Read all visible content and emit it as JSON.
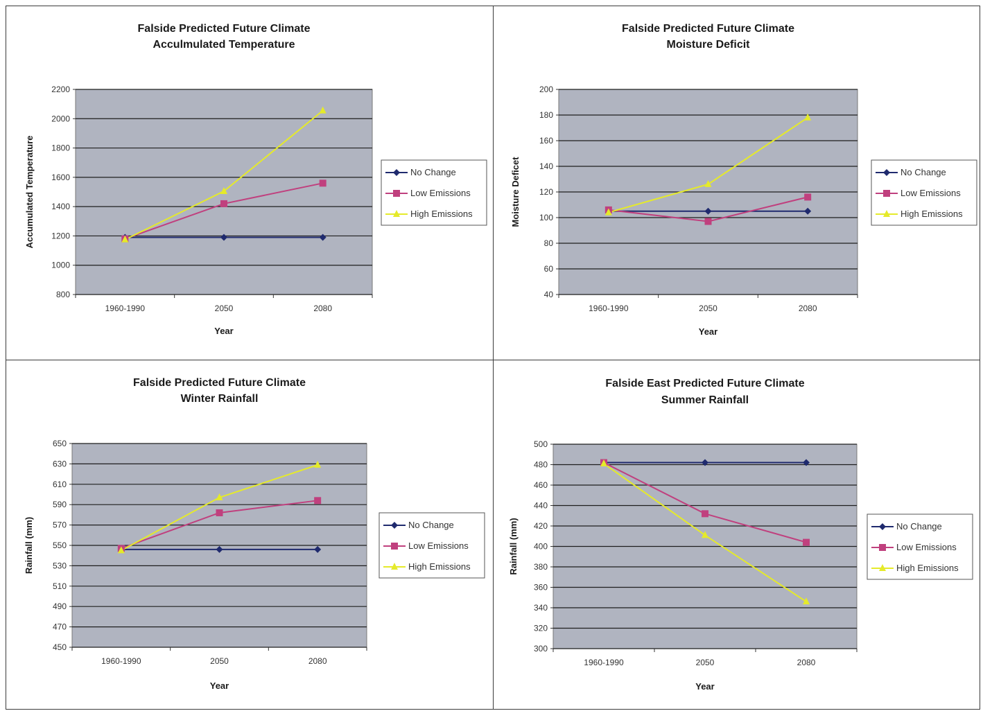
{
  "chart_data": [
    {
      "type": "line",
      "title": "Falside Predicted Future Climate",
      "subtitle": "Acculmulated Temperature",
      "xlabel": "Year",
      "ylabel": "Accumulated Temperature",
      "categories": [
        "1960-1990",
        "2050",
        "2080"
      ],
      "ylim": [
        800,
        2200
      ],
      "yticks": [
        "800",
        "1000",
        "1200",
        "1400",
        "1600",
        "1800",
        "2000",
        "2200"
      ],
      "grid": true,
      "legend": "right",
      "series": [
        {
          "name": "No Change",
          "color": "#1f2a6e",
          "marker": "diamond",
          "values": [
            1190,
            1190,
            1190
          ]
        },
        {
          "name": "Low Emissions",
          "color": "#c0407e",
          "marker": "square",
          "values": [
            1180,
            1420,
            1560
          ]
        },
        {
          "name": "High Emissions",
          "color": "#e5ea2a",
          "marker": "triangle",
          "values": [
            1175,
            1505,
            2055
          ]
        }
      ]
    },
    {
      "type": "line",
      "title": "Falside Predicted Future Climate",
      "subtitle": "Moisture Deficit",
      "xlabel": "Year",
      "ylabel": "Moisture Deficet",
      "categories": [
        "1960-1990",
        "2050",
        "2080"
      ],
      "ylim": [
        40,
        200
      ],
      "yticks": [
        "40",
        "60",
        "80",
        "100",
        "120",
        "140",
        "160",
        "180",
        "200"
      ],
      "grid": true,
      "legend": "right",
      "series": [
        {
          "name": "No Change",
          "color": "#1f2a6e",
          "marker": "diamond",
          "values": [
            105,
            105,
            105
          ]
        },
        {
          "name": "Low Emissions",
          "color": "#c0407e",
          "marker": "square",
          "values": [
            106,
            97,
            116
          ]
        },
        {
          "name": "High Emissions",
          "color": "#e5ea2a",
          "marker": "triangle",
          "values": [
            104,
            126,
            178
          ]
        }
      ]
    },
    {
      "type": "line",
      "title": "Falside Predicted Future Climate",
      "subtitle": "Winter Rainfall",
      "xlabel": "Year",
      "ylabel": "Rainfall (mm)",
      "categories": [
        "1960-1990",
        "2050",
        "2080"
      ],
      "ylim": [
        450,
        650
      ],
      "yticks": [
        "450",
        "470",
        "490",
        "510",
        "530",
        "550",
        "570",
        "590",
        "610",
        "630",
        "650"
      ],
      "grid": true,
      "legend": "right",
      "series": [
        {
          "name": "No Change",
          "color": "#1f2a6e",
          "marker": "diamond",
          "values": [
            546,
            546,
            546
          ]
        },
        {
          "name": "Low Emissions",
          "color": "#c0407e",
          "marker": "square",
          "values": [
            547,
            582,
            594
          ]
        },
        {
          "name": "High Emissions",
          "color": "#e5ea2a",
          "marker": "triangle",
          "values": [
            545,
            597,
            629
          ]
        }
      ]
    },
    {
      "type": "line",
      "title": "Falside East Predicted Future Climate",
      "subtitle": "Summer Rainfall",
      "xlabel": "Year",
      "ylabel": "Rainfall (mm)",
      "categories": [
        "1960-1990",
        "2050",
        "2080"
      ],
      "ylim": [
        300,
        500
      ],
      "yticks": [
        "300",
        "320",
        "340",
        "360",
        "380",
        "400",
        "420",
        "440",
        "460",
        "480",
        "500"
      ],
      "grid": true,
      "legend": "right",
      "series": [
        {
          "name": "No Change",
          "color": "#1f2a6e",
          "marker": "diamond",
          "values": [
            482,
            482,
            482
          ]
        },
        {
          "name": "Low Emissions",
          "color": "#c0407e",
          "marker": "square",
          "values": [
            482,
            432,
            404
          ]
        },
        {
          "name": "High Emissions",
          "color": "#e5ea2a",
          "marker": "triangle",
          "values": [
            481,
            411,
            346
          ]
        }
      ]
    }
  ],
  "colors": {
    "plot_background": "#b0b4c0",
    "gridline": "#1e1e1e",
    "panel_border": "#3a3a3a"
  }
}
